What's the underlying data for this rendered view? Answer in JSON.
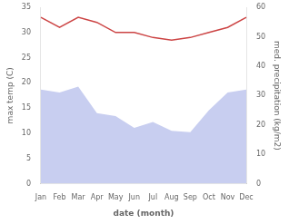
{
  "chart_data": {
    "type": "line",
    "xlabel": "date (month)",
    "ylabel": "max temp (C)",
    "y2label": "med. precipitation (kg/m2)",
    "categories": [
      "Jan",
      "Feb",
      "Mar",
      "Apr",
      "May",
      "Jun",
      "Jul",
      "Aug",
      "Sep",
      "Oct",
      "Nov",
      "Dec"
    ],
    "series": [
      {
        "type": "line",
        "color": "#cc4444",
        "values": [
          33,
          31,
          33,
          32,
          30,
          30,
          29,
          28.5,
          29,
          30,
          31,
          33
        ]
      },
      {
        "type": "area",
        "color": "#c8cef0",
        "axis": "y2",
        "values": [
          32,
          31,
          33,
          24,
          23,
          19,
          21,
          18,
          17.5,
          25,
          31,
          32
        ]
      }
    ],
    "ylim": [
      0,
      35
    ],
    "yticks": [
      0,
      5,
      10,
      15,
      20,
      25,
      30,
      35
    ],
    "y2lim": [
      0,
      60
    ],
    "y2ticks": [
      0,
      10,
      20,
      30,
      40,
      50,
      60
    ],
    "grid": false
  }
}
